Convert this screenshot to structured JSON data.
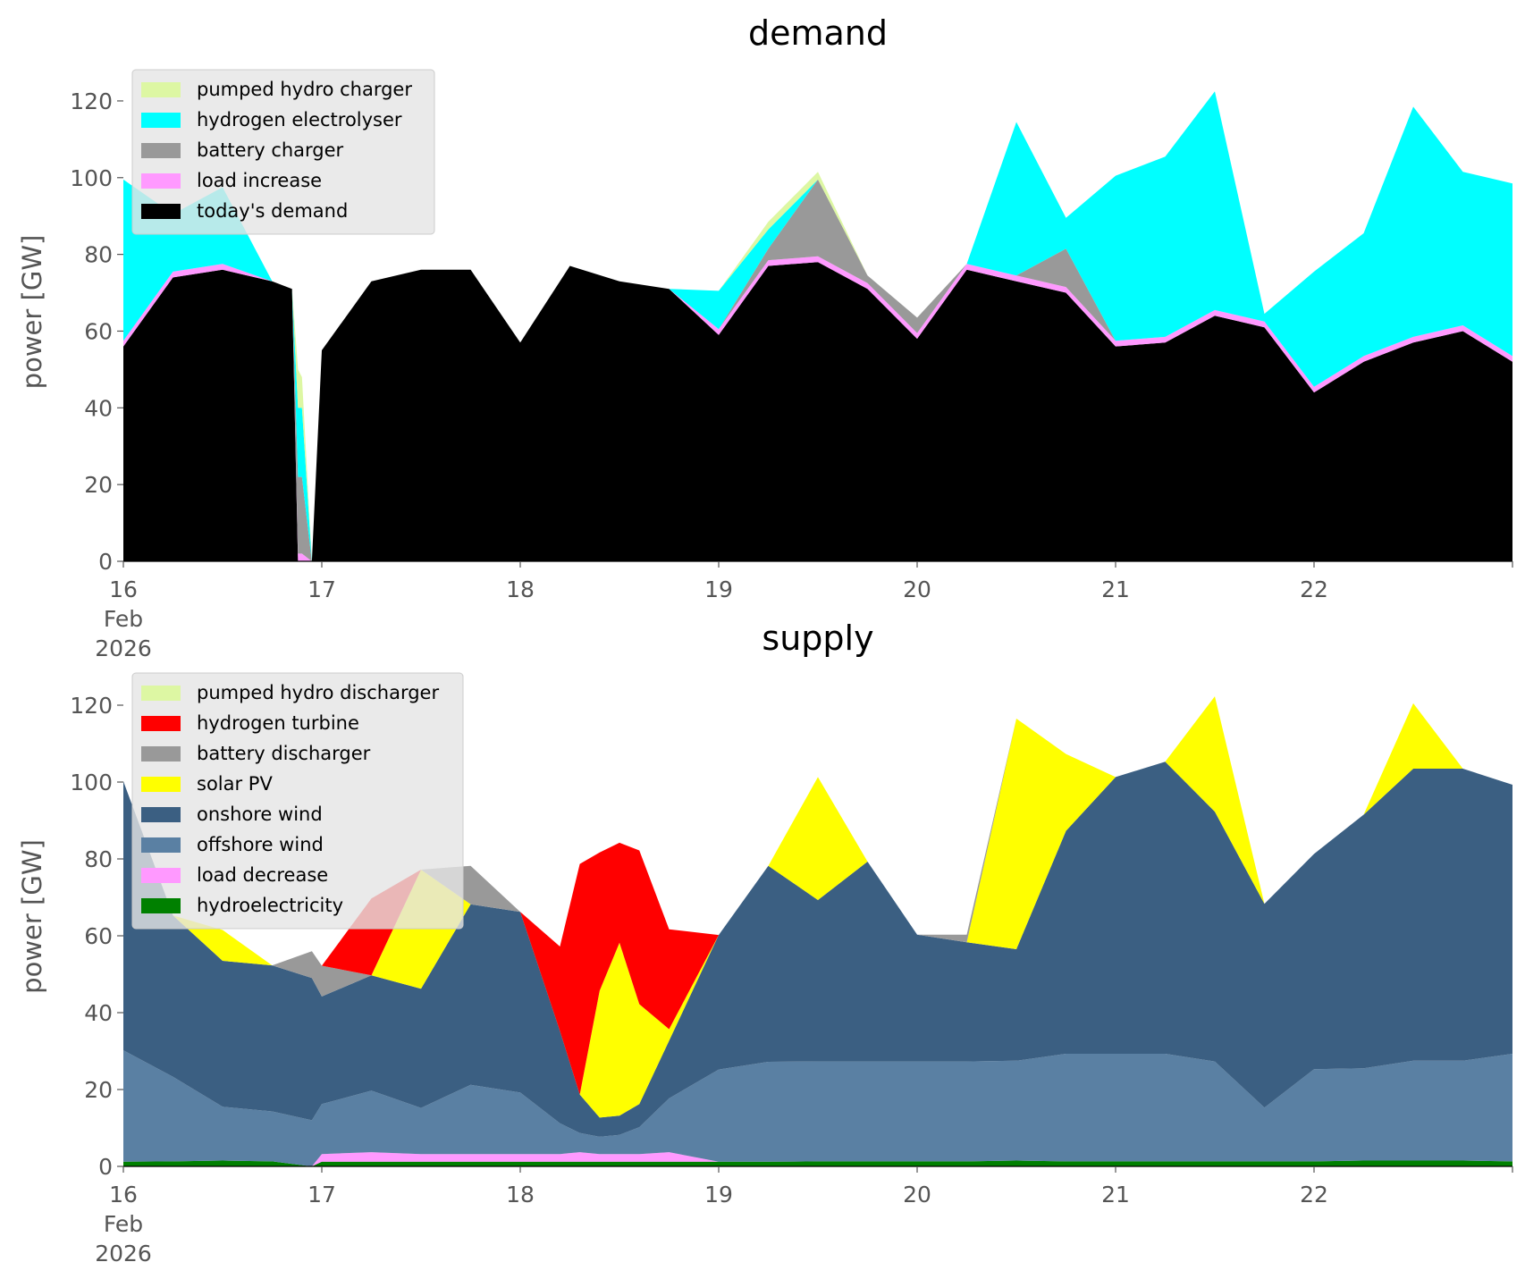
{
  "chart_data": [
    {
      "type": "area",
      "title": "demand",
      "ylabel": "power [GW]",
      "xlabel": "",
      "ylim": [
        0,
        130
      ],
      "yticks": [
        0,
        20,
        40,
        60,
        80,
        100,
        120
      ],
      "xlim": [
        0,
        7
      ],
      "xtick_labels": [
        {
          "day": "16",
          "month": "Feb",
          "year": "2026"
        },
        {
          "day": "17"
        },
        {
          "day": "18"
        },
        {
          "day": "19"
        },
        {
          "day": "20"
        },
        {
          "day": "21"
        },
        {
          "day": "22"
        }
      ],
      "grid": false,
      "legend_position": "top-left",
      "x_days": [
        0,
        0.25,
        0.5,
        0.75,
        0.85,
        0.88,
        0.9,
        0.95,
        1.0,
        1.25,
        1.5,
        1.75,
        2.0,
        2.25,
        2.5,
        2.75,
        3.0,
        3.25,
        3.5,
        3.75,
        4.0,
        4.25,
        4.5,
        4.75,
        5.0,
        5.25,
        5.5,
        5.75,
        6.0,
        6.25,
        6.5,
        6.75,
        7.0
      ],
      "series": [
        {
          "name": "today's demand",
          "color": "#000000",
          "values": [
            56,
            74,
            76,
            73,
            71,
            0,
            0,
            0,
            55,
            73,
            76,
            76,
            57,
            77,
            73,
            71,
            59,
            77,
            78,
            71,
            58,
            76,
            73,
            70,
            56,
            57,
            64,
            61,
            44,
            52,
            57,
            60,
            52
          ]
        },
        {
          "name": "load increase",
          "color": "#ff99ff",
          "values": [
            1.5,
            1.5,
            1.5,
            0,
            0,
            2,
            2,
            0,
            0,
            0,
            0,
            0,
            0,
            0,
            0,
            0,
            1.5,
            1.5,
            1.5,
            1.5,
            1.5,
            1.5,
            1.5,
            1.5,
            1.5,
            1.5,
            1.5,
            1.5,
            1.5,
            1.5,
            1.5,
            1.5,
            1.5
          ]
        },
        {
          "name": "battery charger",
          "color": "#999999",
          "values": [
            0,
            0,
            0,
            0,
            0,
            20,
            20,
            0,
            0,
            0,
            0,
            0,
            0,
            0,
            0,
            0,
            0,
            3,
            20,
            2,
            4,
            0,
            0,
            10,
            0,
            0,
            0,
            0,
            0,
            0,
            0,
            0,
            0
          ]
        },
        {
          "name": "hydrogen electrolyser",
          "color": "#00ffff",
          "values": [
            42,
            15,
            20,
            0,
            0,
            18,
            18,
            0,
            0,
            0,
            0,
            0,
            0,
            0,
            0,
            0,
            10,
            5,
            0,
            0,
            0,
            0,
            40,
            8,
            43,
            47,
            57,
            2,
            30,
            32,
            60,
            40,
            45
          ]
        },
        {
          "name": "pumped hydro charger",
          "color": "#ddf7a3",
          "values": [
            0,
            0,
            0,
            0,
            0,
            10,
            8,
            0,
            0,
            0,
            0,
            0,
            0,
            0,
            0,
            0,
            0,
            2,
            2,
            0,
            0,
            0,
            0,
            0,
            0,
            0,
            0,
            0,
            0,
            0,
            0,
            0,
            0
          ]
        }
      ]
    },
    {
      "type": "area",
      "title": "supply",
      "ylabel": "power [GW]",
      "xlabel": "",
      "ylim": [
        0,
        130
      ],
      "yticks": [
        0,
        20,
        40,
        60,
        80,
        100,
        120
      ],
      "xlim": [
        0,
        7
      ],
      "xtick_labels": [
        {
          "day": "16",
          "month": "Feb",
          "year": "2026"
        },
        {
          "day": "17"
        },
        {
          "day": "18"
        },
        {
          "day": "19"
        },
        {
          "day": "20"
        },
        {
          "day": "21"
        },
        {
          "day": "22"
        }
      ],
      "grid": false,
      "legend_position": "top-left",
      "x_days": [
        0,
        0.25,
        0.5,
        0.75,
        0.95,
        1.0,
        1.25,
        1.5,
        1.75,
        2.0,
        2.2,
        2.3,
        2.4,
        2.5,
        2.6,
        2.75,
        3.0,
        3.25,
        3.5,
        3.75,
        4.0,
        4.25,
        4.5,
        4.75,
        5.0,
        5.25,
        5.5,
        5.75,
        6.0,
        6.25,
        6.5,
        6.75,
        7.0
      ],
      "series": [
        {
          "name": "hydroelectricity",
          "color": "#008000",
          "values": [
            1.2,
            1.3,
            1.5,
            1.3,
            0,
            1.2,
            1.2,
            1.2,
            1.2,
            1.2,
            1.2,
            1.2,
            1.2,
            1.2,
            1.2,
            1.2,
            1.2,
            1.2,
            1.3,
            1.3,
            1.3,
            1.3,
            1.5,
            1.3,
            1.3,
            1.3,
            1.3,
            1.3,
            1.3,
            1.5,
            1.5,
            1.5,
            1.3
          ]
        },
        {
          "name": "load decrease",
          "color": "#ff99ff",
          "values": [
            0,
            0,
            0,
            0,
            0,
            2,
            2.5,
            2,
            2,
            2,
            2,
            2.5,
            2,
            2,
            2,
            2.5,
            0,
            0,
            0,
            0,
            0,
            0,
            0,
            0,
            0,
            0,
            0,
            0,
            0,
            0,
            0,
            0,
            0
          ]
        },
        {
          "name": "offshore wind",
          "color": "#5a80a3",
          "values": [
            29,
            22,
            14,
            13,
            12,
            13,
            16,
            12,
            18,
            16,
            8,
            5,
            4.5,
            5,
            7,
            14,
            24,
            26,
            26,
            26,
            26,
            26,
            26,
            28,
            28,
            28,
            26,
            14,
            24,
            24,
            26,
            26,
            28
          ]
        },
        {
          "name": "onshore wind",
          "color": "#3b5f82",
          "values": [
            70,
            42,
            38,
            38,
            37,
            28,
            30,
            31,
            47,
            47,
            24,
            10,
            5,
            5,
            6,
            15,
            35,
            51,
            42,
            52,
            33,
            31,
            29,
            58,
            72,
            76,
            65,
            53,
            56,
            66,
            76,
            76,
            70
          ]
        },
        {
          "name": "solar PV",
          "color": "#ffff00",
          "values": [
            0,
            0,
            8,
            0,
            0,
            0,
            0,
            31,
            0,
            0,
            0,
            0,
            33,
            45,
            26,
            3,
            0,
            0,
            32,
            0,
            0,
            0,
            60,
            20,
            0,
            0,
            30,
            0,
            0,
            0,
            17,
            0,
            0
          ]
        },
        {
          "name": "battery discharger",
          "color": "#999999",
          "values": [
            0,
            0,
            0,
            0,
            7,
            8,
            0,
            0,
            10,
            0,
            0,
            0,
            0,
            0,
            0,
            0,
            0,
            0,
            0,
            0,
            0,
            2,
            0,
            0,
            0,
            0,
            0,
            0,
            0,
            0,
            0,
            0,
            0
          ]
        },
        {
          "name": "hydrogen turbine",
          "color": "#ff0000",
          "values": [
            0,
            0,
            0,
            0,
            0,
            0,
            20,
            0,
            0,
            0,
            22,
            60,
            36,
            26,
            40,
            26,
            0,
            0,
            0,
            0,
            0,
            0,
            0,
            0,
            0,
            0,
            0,
            0,
            0,
            0,
            0,
            0,
            0
          ]
        },
        {
          "name": "pumped hydro discharger",
          "color": "#ddf7a3",
          "values": [
            0,
            0,
            0,
            0,
            0,
            0,
            0,
            0,
            0,
            0,
            0,
            0,
            0,
            0,
            0,
            0,
            0,
            0,
            0,
            0,
            0,
            0,
            0,
            0,
            0,
            0,
            0,
            0,
            0,
            0,
            0,
            0,
            0
          ]
        }
      ]
    }
  ]
}
